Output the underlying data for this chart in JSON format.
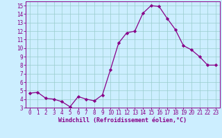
{
  "x": [
    0,
    1,
    2,
    3,
    4,
    5,
    6,
    7,
    8,
    9,
    10,
    11,
    12,
    13,
    14,
    15,
    16,
    17,
    18,
    19,
    20,
    21,
    22,
    23
  ],
  "y": [
    4.7,
    4.8,
    4.1,
    4.0,
    3.7,
    3.1,
    4.3,
    4.0,
    3.8,
    4.5,
    7.5,
    10.6,
    11.8,
    12.0,
    14.1,
    15.0,
    14.9,
    13.5,
    12.2,
    10.3,
    9.8,
    9.0,
    8.0,
    8.0
  ],
  "xlabel": "Windchill (Refroidissement éolien,°C)",
  "xlim": [
    -0.5,
    23.5
  ],
  "ylim": [
    3,
    15.5
  ],
  "yticks": [
    3,
    4,
    5,
    6,
    7,
    8,
    9,
    10,
    11,
    12,
    13,
    14,
    15
  ],
  "xticks": [
    0,
    1,
    2,
    3,
    4,
    5,
    6,
    7,
    8,
    9,
    10,
    11,
    12,
    13,
    14,
    15,
    16,
    17,
    18,
    19,
    20,
    21,
    22,
    23
  ],
  "line_color": "#880088",
  "marker": "D",
  "marker_size": 2.2,
  "bg_color": "#cceeff",
  "grid_color": "#99cccc",
  "tick_color": "#880088",
  "label_color": "#880088",
  "tick_fontsize": 5.5,
  "xlabel_fontsize": 6.0
}
